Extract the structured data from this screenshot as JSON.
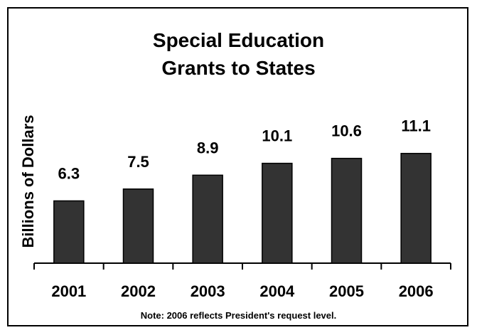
{
  "chart_data": {
    "type": "bar",
    "title_line1": "Special Education",
    "title_line2": "Grants to States",
    "ylabel": "Billions of Dollars",
    "categories": [
      "2001",
      "2002",
      "2003",
      "2004",
      "2005",
      "2006"
    ],
    "values": [
      6.3,
      7.5,
      8.9,
      10.1,
      10.6,
      11.1
    ],
    "value_labels": [
      "6.3",
      "7.5",
      "8.9",
      "10.1",
      "10.6",
      "11.1"
    ],
    "note": "Note:  2006 reflects President's request level.",
    "bar_color": "#333333",
    "grid": false,
    "legend": "none"
  }
}
